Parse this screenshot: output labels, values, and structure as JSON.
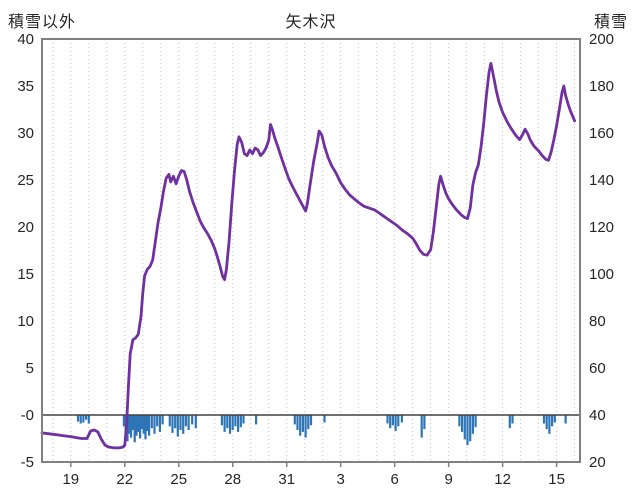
{
  "chart_data": {
    "type": "line+bar",
    "title": "矢木沢",
    "left_axis_label": "積雪以外",
    "right_axis_label": "積雪",
    "grid": "vertical-dotted-daily",
    "legend": "none",
    "x_range": [
      17.4,
      47.3
    ],
    "left_range": [
      -5,
      40
    ],
    "right_range": [
      20,
      200
    ],
    "left_ticks": [
      "40",
      "35",
      "30",
      "25",
      "20",
      "15",
      "10",
      "5",
      "-0",
      "-5"
    ],
    "left_tick_values": [
      40,
      35,
      30,
      25,
      20,
      15,
      10,
      5,
      0,
      -5
    ],
    "right_ticks": [
      "200",
      "180",
      "160",
      "140",
      "120",
      "100",
      "80",
      "60",
      "40",
      "20"
    ],
    "x_tick_labels": [
      "19",
      "22",
      "25",
      "28",
      "31",
      "3",
      "6",
      "9",
      "12",
      "15"
    ],
    "x_tick_days": [
      19,
      22,
      25,
      28,
      31,
      34,
      37,
      40,
      43,
      46
    ],
    "zero_line_value": 0,
    "colors": {
      "line": "#7030A0",
      "bars": "#2E75B6",
      "frame": "#808080",
      "grid": "#C6C6C6",
      "zero_line": "#404040",
      "text": "#262626"
    },
    "series": [
      {
        "name": "snow-depth-line",
        "type": "line",
        "axis": "right",
        "color": "#7030A0",
        "points": [
          [
            17.4,
            -1.9
          ],
          [
            17.8,
            -2.0
          ],
          [
            18.2,
            -2.1
          ],
          [
            18.6,
            -2.2
          ],
          [
            19.0,
            -2.3
          ],
          [
            19.3,
            -2.4
          ],
          [
            19.6,
            -2.5
          ],
          [
            19.9,
            -2.5
          ],
          [
            20.1,
            -1.7
          ],
          [
            20.3,
            -1.6
          ],
          [
            20.5,
            -1.8
          ],
          [
            20.7,
            -2.6
          ],
          [
            20.9,
            -3.2
          ],
          [
            21.1,
            -3.4
          ],
          [
            21.4,
            -3.5
          ],
          [
            21.7,
            -3.5
          ],
          [
            21.9,
            -3.4
          ],
          [
            22.0,
            -3.2
          ],
          [
            22.1,
            -1.0
          ],
          [
            22.2,
            3.0
          ],
          [
            22.3,
            6.5
          ],
          [
            22.45,
            8.0
          ],
          [
            22.6,
            8.2
          ],
          [
            22.75,
            8.6
          ],
          [
            22.9,
            10.5
          ],
          [
            23.0,
            13.0
          ],
          [
            23.1,
            14.8
          ],
          [
            23.25,
            15.5
          ],
          [
            23.4,
            15.8
          ],
          [
            23.55,
            16.5
          ],
          [
            23.7,
            18.5
          ],
          [
            23.85,
            20.5
          ],
          [
            24.0,
            22.0
          ],
          [
            24.15,
            23.8
          ],
          [
            24.3,
            25.2
          ],
          [
            24.45,
            25.6
          ],
          [
            24.55,
            24.8
          ],
          [
            24.7,
            25.4
          ],
          [
            24.85,
            24.6
          ],
          [
            25.0,
            25.4
          ],
          [
            25.15,
            26.0
          ],
          [
            25.3,
            25.9
          ],
          [
            25.45,
            25.0
          ],
          [
            25.6,
            23.8
          ],
          [
            25.8,
            22.6
          ],
          [
            26.0,
            21.6
          ],
          [
            26.2,
            20.6
          ],
          [
            26.4,
            19.9
          ],
          [
            26.6,
            19.3
          ],
          [
            26.8,
            18.6
          ],
          [
            27.0,
            17.7
          ],
          [
            27.15,
            16.8
          ],
          [
            27.3,
            15.8
          ],
          [
            27.45,
            14.7
          ],
          [
            27.55,
            14.4
          ],
          [
            27.65,
            15.5
          ],
          [
            27.8,
            18.5
          ],
          [
            27.95,
            22.5
          ],
          [
            28.1,
            26.0
          ],
          [
            28.25,
            28.8
          ],
          [
            28.35,
            29.6
          ],
          [
            28.5,
            29.0
          ],
          [
            28.65,
            27.8
          ],
          [
            28.8,
            27.6
          ],
          [
            28.95,
            28.2
          ],
          [
            29.1,
            27.8
          ],
          [
            29.25,
            28.4
          ],
          [
            29.4,
            28.2
          ],
          [
            29.55,
            27.6
          ],
          [
            29.7,
            27.9
          ],
          [
            29.85,
            28.4
          ],
          [
            30.0,
            29.2
          ],
          [
            30.1,
            30.9
          ],
          [
            30.2,
            30.4
          ],
          [
            30.35,
            29.4
          ],
          [
            30.5,
            28.6
          ],
          [
            30.7,
            27.4
          ],
          [
            30.9,
            26.3
          ],
          [
            31.1,
            25.2
          ],
          [
            31.35,
            24.2
          ],
          [
            31.6,
            23.3
          ],
          [
            31.85,
            22.4
          ],
          [
            32.05,
            21.7
          ],
          [
            32.15,
            22.5
          ],
          [
            32.3,
            24.5
          ],
          [
            32.5,
            27.0
          ],
          [
            32.7,
            29.0
          ],
          [
            32.8,
            30.2
          ],
          [
            32.95,
            29.8
          ],
          [
            33.1,
            28.6
          ],
          [
            33.3,
            27.4
          ],
          [
            33.5,
            26.5
          ],
          [
            33.75,
            25.7
          ],
          [
            34.0,
            24.7
          ],
          [
            34.25,
            24.0
          ],
          [
            34.5,
            23.4
          ],
          [
            34.75,
            23.0
          ],
          [
            35.0,
            22.6
          ],
          [
            35.3,
            22.2
          ],
          [
            35.6,
            22.0
          ],
          [
            35.9,
            21.8
          ],
          [
            36.2,
            21.4
          ],
          [
            36.5,
            21.0
          ],
          [
            36.8,
            20.6
          ],
          [
            37.1,
            20.2
          ],
          [
            37.4,
            19.7
          ],
          [
            37.7,
            19.3
          ],
          [
            38.0,
            18.8
          ],
          [
            38.2,
            18.2
          ],
          [
            38.4,
            17.5
          ],
          [
            38.6,
            17.1
          ],
          [
            38.8,
            17.0
          ],
          [
            39.0,
            17.6
          ],
          [
            39.15,
            19.5
          ],
          [
            39.3,
            22.0
          ],
          [
            39.45,
            24.5
          ],
          [
            39.55,
            25.4
          ],
          [
            39.7,
            24.4
          ],
          [
            39.85,
            23.6
          ],
          [
            40.0,
            23.0
          ],
          [
            40.2,
            22.4
          ],
          [
            40.45,
            21.8
          ],
          [
            40.7,
            21.3
          ],
          [
            40.9,
            21.0
          ],
          [
            41.05,
            20.9
          ],
          [
            41.2,
            22.0
          ],
          [
            41.35,
            24.5
          ],
          [
            41.5,
            25.8
          ],
          [
            41.65,
            26.6
          ],
          [
            41.8,
            28.5
          ],
          [
            41.95,
            31.0
          ],
          [
            42.1,
            34.0
          ],
          [
            42.25,
            36.5
          ],
          [
            42.35,
            37.4
          ],
          [
            42.5,
            36.0
          ],
          [
            42.65,
            34.5
          ],
          [
            42.8,
            33.3
          ],
          [
            43.0,
            32.2
          ],
          [
            43.25,
            31.2
          ],
          [
            43.5,
            30.4
          ],
          [
            43.75,
            29.7
          ],
          [
            43.95,
            29.3
          ],
          [
            44.1,
            29.8
          ],
          [
            44.25,
            30.4
          ],
          [
            44.4,
            29.9
          ],
          [
            44.55,
            29.2
          ],
          [
            44.75,
            28.6
          ],
          [
            45.0,
            28.1
          ],
          [
            45.2,
            27.6
          ],
          [
            45.4,
            27.2
          ],
          [
            45.55,
            27.1
          ],
          [
            45.7,
            28.0
          ],
          [
            45.85,
            29.3
          ],
          [
            46.0,
            30.8
          ],
          [
            46.15,
            32.5
          ],
          [
            46.3,
            34.3
          ],
          [
            46.4,
            35.0
          ],
          [
            46.5,
            34.0
          ],
          [
            46.65,
            33.0
          ],
          [
            46.8,
            32.2
          ],
          [
            47.0,
            31.3
          ]
        ]
      },
      {
        "name": "non-snow-bars",
        "type": "bar",
        "axis": "left",
        "color": "#2E75B6",
        "points": [
          [
            19.4,
            -0.7
          ],
          [
            19.55,
            -0.9
          ],
          [
            19.7,
            -0.8
          ],
          [
            19.85,
            -0.5
          ],
          [
            20.0,
            -0.9
          ],
          [
            21.95,
            -1.2
          ],
          [
            22.05,
            -2.2
          ],
          [
            22.15,
            -2.8
          ],
          [
            22.25,
            -2.0
          ],
          [
            22.35,
            -2.4
          ],
          [
            22.45,
            -1.6
          ],
          [
            22.55,
            -2.9
          ],
          [
            22.65,
            -2.2
          ],
          [
            22.75,
            -1.8
          ],
          [
            22.85,
            -2.5
          ],
          [
            22.95,
            -1.5
          ],
          [
            23.05,
            -2.0
          ],
          [
            23.15,
            -2.6
          ],
          [
            23.25,
            -1.7
          ],
          [
            23.35,
            -2.2
          ],
          [
            23.5,
            -1.4
          ],
          [
            23.65,
            -2.0
          ],
          [
            23.8,
            -1.2
          ],
          [
            23.95,
            -1.8
          ],
          [
            24.1,
            -1.0
          ],
          [
            24.5,
            -1.2
          ],
          [
            24.65,
            -1.9
          ],
          [
            24.8,
            -1.4
          ],
          [
            24.95,
            -2.3
          ],
          [
            25.1,
            -1.6
          ],
          [
            25.25,
            -2.0
          ],
          [
            25.4,
            -1.2
          ],
          [
            25.55,
            -1.6
          ],
          [
            25.75,
            -1.0
          ],
          [
            25.95,
            -1.4
          ],
          [
            27.4,
            -1.1
          ],
          [
            27.55,
            -1.8
          ],
          [
            27.7,
            -1.4
          ],
          [
            27.85,
            -2.0
          ],
          [
            28.0,
            -1.6
          ],
          [
            28.15,
            -1.2
          ],
          [
            28.3,
            -1.8
          ],
          [
            28.45,
            -1.3
          ],
          [
            28.6,
            -0.9
          ],
          [
            29.3,
            -1.0
          ],
          [
            31.45,
            -1.0
          ],
          [
            31.6,
            -1.6
          ],
          [
            31.75,
            -2.2
          ],
          [
            31.9,
            -1.8
          ],
          [
            32.05,
            -2.4
          ],
          [
            32.2,
            -1.5
          ],
          [
            32.35,
            -1.1
          ],
          [
            33.1,
            -0.8
          ],
          [
            36.6,
            -0.9
          ],
          [
            36.75,
            -1.4
          ],
          [
            36.9,
            -1.1
          ],
          [
            37.05,
            -1.7
          ],
          [
            37.2,
            -1.2
          ],
          [
            37.4,
            -0.8
          ],
          [
            38.5,
            -2.4
          ],
          [
            38.65,
            -1.5
          ],
          [
            40.6,
            -1.2
          ],
          [
            40.75,
            -1.8
          ],
          [
            40.9,
            -2.6
          ],
          [
            41.05,
            -3.2
          ],
          [
            41.2,
            -2.8
          ],
          [
            41.35,
            -2.0
          ],
          [
            41.5,
            -1.3
          ],
          [
            43.4,
            -1.4
          ],
          [
            43.55,
            -0.9
          ],
          [
            45.3,
            -0.9
          ],
          [
            45.45,
            -1.5
          ],
          [
            45.6,
            -2.0
          ],
          [
            45.75,
            -1.2
          ],
          [
            45.9,
            -0.8
          ],
          [
            46.5,
            -0.9
          ]
        ]
      }
    ]
  }
}
